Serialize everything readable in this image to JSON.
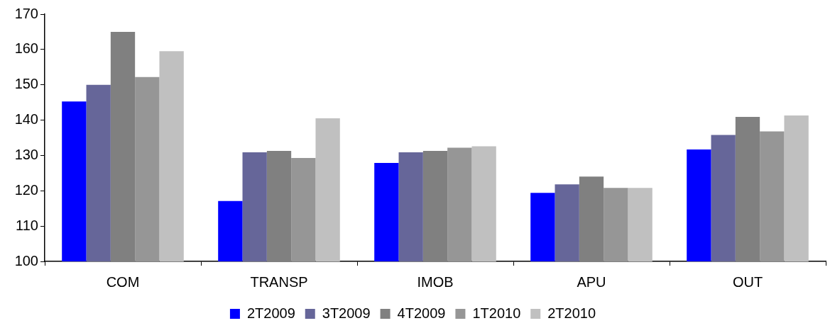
{
  "chart_data": {
    "type": "bar",
    "categories": [
      "COM",
      "TRANSP",
      "IMOB",
      "APU",
      "OUT"
    ],
    "series": [
      {
        "name": "2T2009",
        "color": "#0000ff",
        "values": [
          145.3,
          117.1,
          127.9,
          119.4,
          131.7
        ]
      },
      {
        "name": "3T2009",
        "color": "#666699",
        "values": [
          150.0,
          130.9,
          130.9,
          121.8,
          135.8
        ]
      },
      {
        "name": "4T2009",
        "color": "#808080",
        "values": [
          165.0,
          131.3,
          131.3,
          124.0,
          140.9
        ]
      },
      {
        "name": "1T2010",
        "color": "#969696",
        "values": [
          152.2,
          129.3,
          132.2,
          120.8,
          136.8
        ]
      },
      {
        "name": "2T2010",
        "color": "#c0c0c0",
        "values": [
          159.5,
          140.5,
          132.6,
          120.8,
          141.3
        ]
      }
    ],
    "ylim": [
      100,
      170
    ],
    "yticks": [
      100,
      110,
      120,
      130,
      140,
      150,
      160,
      170
    ],
    "grid": false,
    "legend": "bottom"
  }
}
